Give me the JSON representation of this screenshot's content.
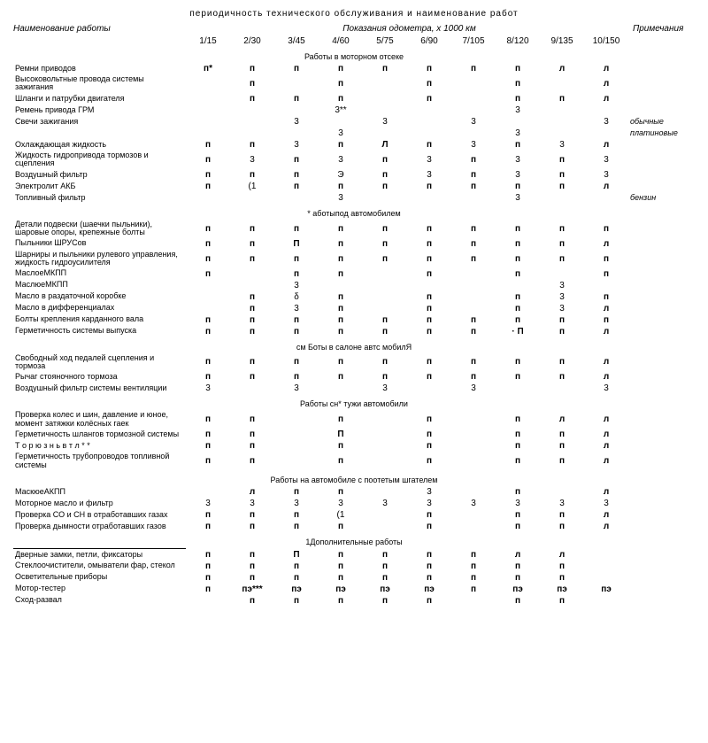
{
  "subtitle": "периодичность технического обслуживания и наименование работ",
  "headers": {
    "work": "Наименование работы",
    "odo": "Показания одометра, х 1000 км",
    "notes": "Примечания",
    "cols": [
      "1/15",
      "2/30",
      "3/45",
      "4/60",
      "5/75",
      "6/90",
      "7/105",
      "8/120",
      "9/135",
      "10/150"
    ]
  },
  "sections": [
    {
      "title": "Работы в моторном отсеке",
      "rows": [
        {
          "name": "Ремни приводов",
          "v": [
            "п*",
            "п",
            "п",
            "п",
            "п",
            "п",
            "п",
            "п",
            "л",
            "л"
          ]
        },
        {
          "name": "Высоковольтные провода системы зажигания",
          "v": [
            "",
            "п",
            "",
            "п",
            "",
            "п",
            "",
            "п",
            "",
            "л"
          ]
        },
        {
          "name": "Шланги и патрубки двигателя",
          "v": [
            "",
            "п",
            "п",
            "п",
            "",
            "п",
            "",
            "п",
            "п",
            "л"
          ]
        },
        {
          "name": "Ремень привода ГРМ",
          "v": [
            "",
            "",
            "",
            "3**",
            "",
            "",
            "",
            "3",
            "",
            ""
          ]
        },
        {
          "name": "Свечи зажигания",
          "v": [
            "",
            "",
            "3",
            "",
            "3",
            "",
            "3",
            "",
            "",
            "3"
          ],
          "note": "обычные"
        },
        {
          "name": "",
          "v": [
            "",
            "",
            "",
            "3",
            "",
            "",
            "",
            "3",
            "",
            ""
          ],
          "note": "платиновые"
        },
        {
          "name": "Охлаждающая жидкость",
          "v": [
            "п",
            "п",
            "3",
            "п",
            "Л",
            "п",
            "3",
            "п",
            "3",
            "л"
          ]
        },
        {
          "name": "Жидкость гидропривода тормозов и сцепления",
          "v": [
            "п",
            "3",
            "п",
            "3",
            "п",
            "3",
            "п",
            "3",
            "п",
            "3"
          ]
        },
        {
          "name": "Воздушный фильтр",
          "v": [
            "п",
            "п",
            "п",
            "Э",
            "п",
            "3",
            "п",
            "3",
            "п",
            "3"
          ]
        },
        {
          "name": "Электролит АКБ",
          "v": [
            "п",
            "(1",
            "п",
            "п",
            "п",
            "п",
            "п",
            "п",
            "п",
            "л"
          ]
        },
        {
          "name": "Топливный фильтр",
          "v": [
            "",
            "",
            "",
            "3",
            "",
            "",
            "",
            "3",
            "",
            ""
          ],
          "note": "бензин"
        }
      ]
    },
    {
      "title": "* аботыпод автомобилем",
      "rows": [
        {
          "name": "Детали подвески (шаечки пыльники), шаровые опоры, крепежные болты",
          "v": [
            "п",
            "п",
            "п",
            "п",
            "п",
            "п",
            "п",
            "п",
            "п",
            "п"
          ]
        },
        {
          "name": "Пыльники ШРУСов",
          "v": [
            "п",
            "п",
            "П",
            "п",
            "п",
            "п",
            "п",
            "п",
            "п",
            "л"
          ]
        },
        {
          "name": "Шарниры и пыльники рулевого управления, жидкость гидроусилителя",
          "v": [
            "п",
            "п",
            "п",
            "п",
            "п",
            "п",
            "п",
            "п",
            "п",
            "п"
          ]
        },
        {
          "name": "МаслоеМКПП",
          "v": [
            "п",
            "",
            "п",
            "п",
            "",
            "п",
            "",
            "п",
            "",
            "п"
          ]
        },
        {
          "name": "МаслюеМКПП",
          "v": [
            "",
            "",
            "3",
            "",
            "",
            "",
            "",
            "",
            "3",
            ""
          ]
        },
        {
          "name": "Масло в раздаточной коробке",
          "v": [
            "",
            "п",
            "δ",
            "п",
            "",
            "п",
            "",
            "п",
            "3",
            "п"
          ]
        },
        {
          "name": "Масло в дифференциалах",
          "v": [
            "",
            "п",
            "3",
            "п",
            "",
            "п",
            "",
            "п",
            "3",
            "л"
          ]
        },
        {
          "name": "Болты крепления карданного вала",
          "v": [
            "п",
            "п",
            "п",
            "п",
            "п",
            "п",
            "п",
            "п",
            "п",
            "п"
          ]
        },
        {
          "name": "Герметичность системы выпуска",
          "v": [
            "п",
            "п",
            "п",
            "п",
            "п",
            "п",
            "п",
            "· П",
            "п",
            "л"
          ]
        }
      ]
    },
    {
      "title": "см Боты в салоне автс мобилЯ",
      "rows": [
        {
          "name": "Свободный ход педалей сцепления и тормоза",
          "v": [
            "п",
            "п",
            "п",
            "п",
            "п",
            "п",
            "п",
            "п",
            "п",
            "л"
          ]
        },
        {
          "name": "Рычаг стояночного тормоза",
          "v": [
            "п",
            "п",
            "п",
            "п",
            "п",
            "п",
            "п",
            "п",
            "п",
            "л"
          ]
        },
        {
          "name": "Воздушный фильтр системы вентиляции",
          "v": [
            "3",
            "",
            "3",
            "",
            "3",
            "",
            "3",
            "",
            "",
            "3"
          ]
        }
      ]
    },
    {
      "title": "Работы сн* тужи автомобили",
      "rows": [
        {
          "name": "Проверка колес и шин, давление и юное, момент затяжки колёсных гаек",
          "v": [
            "п",
            "п",
            "",
            "п",
            "",
            "п",
            "",
            "п",
            "л",
            "л"
          ]
        },
        {
          "name": "Герметичность шлангов тормозной системы",
          "v": [
            "п",
            "п",
            "",
            "П",
            "",
            "п",
            "",
            "п",
            "п",
            "л"
          ]
        },
        {
          "name": "Т о р ю з н ь в т л * *",
          "v": [
            "п",
            "п",
            "",
            "п",
            "",
            "п",
            "",
            "п",
            "п",
            "л"
          ]
        },
        {
          "name": "Герметичность трубопроводов топливной системы",
          "v": [
            "п",
            "п",
            "",
            "п",
            "",
            "п",
            "",
            "п",
            "п",
            "л"
          ]
        }
      ]
    },
    {
      "title": "Работы на автомобиле с поотетым шгателем",
      "rows": [
        {
          "name": "МаскюеАКПП",
          "v": [
            "",
            "л",
            "п",
            "п",
            "",
            "3",
            "",
            "п",
            "",
            "л"
          ]
        },
        {
          "name": "Моторное масло и фильтр",
          "v": [
            "3",
            "3",
            "3",
            "3",
            "3",
            "3",
            "3",
            "3",
            "3",
            "3"
          ]
        },
        {
          "name": "Проверка СО и СН в отработавших газах",
          "v": [
            "п",
            "п",
            "п",
            "(1",
            "",
            "п",
            "",
            "п",
            "п",
            "л"
          ]
        },
        {
          "name": "Проверка дымности отработавших газов",
          "v": [
            "п",
            "п",
            "п",
            "п",
            "",
            "п",
            "",
            "п",
            "п",
            "л"
          ]
        }
      ]
    },
    {
      "title": "1Дополнительные работы",
      "rows": [
        {
          "name": "Дверные замки, петли, фиксаторы",
          "v": [
            "п",
            "п",
            "П",
            "п",
            "п",
            "п",
            "п",
            "л",
            "л",
            ""
          ],
          "divider": true
        },
        {
          "name": "Стеклоочистители, омыватели фар, стекол",
          "v": [
            "п",
            "п",
            "п",
            "п",
            "п",
            "п",
            "п",
            "п",
            "п",
            ""
          ]
        },
        {
          "name": "Осветительные приборы",
          "v": [
            "п",
            "п",
            "п",
            "п",
            "п",
            "п",
            "п",
            "п",
            "п",
            ""
          ]
        },
        {
          "name": "Мотор-тестер",
          "v": [
            "п",
            "пэ***",
            "пэ",
            "пэ",
            "пэ",
            "пэ",
            "п",
            "пэ",
            "пэ",
            "пэ"
          ]
        },
        {
          "name": "Сход-развал",
          "v": [
            "",
            "п",
            "п",
            "п",
            "п",
            "п",
            "",
            "п",
            "п",
            ""
          ]
        }
      ]
    }
  ]
}
